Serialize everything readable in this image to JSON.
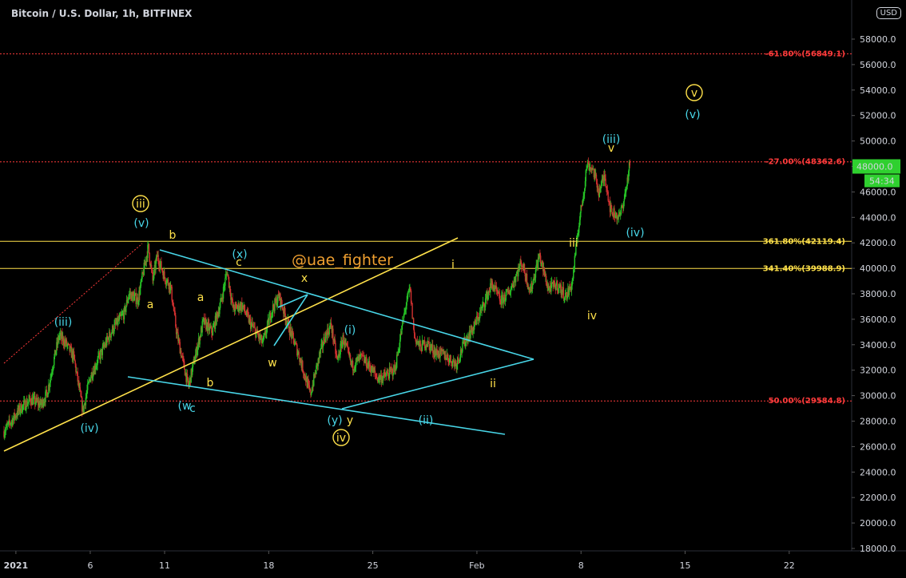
{
  "header": {
    "title": "Bitcoin / U.S. Dollar, 1h, BITFINEX",
    "currency": "USD"
  },
  "colors": {
    "background": "#000000",
    "axis_text": "#d1d4dc",
    "candle_up": "#26c526",
    "candle_down": "#d43030",
    "cyan": "#48d6e8",
    "yellow": "#ffe14a",
    "red": "#ff3b3b",
    "price_tag": "#2fd02f"
  },
  "chart_data": {
    "type": "candlestick",
    "symbol": "Bitcoin / U.S. Dollar",
    "interval": "1h",
    "exchange": "BITFINEX",
    "ylim": [
      17000,
      62000
    ],
    "y_ticks": [
      "18000.0",
      "20000.0",
      "22000.0",
      "24000.0",
      "26000.0",
      "28000.0",
      "30000.0",
      "32000.0",
      "34000.0",
      "36000.0",
      "38000.0",
      "40000.0",
      "42000.0",
      "44000.0",
      "46000.0",
      "48000.0",
      "50000.0",
      "52000.0",
      "54000.0",
      "56000.0",
      "58000.0"
    ],
    "x_ticks": [
      "2021",
      "6",
      "11",
      "18",
      "25",
      "Feb",
      "8",
      "15",
      "22"
    ],
    "x_tick_days": [
      32,
      37,
      42,
      49,
      56,
      63,
      70,
      77,
      84
    ],
    "xlim_days": [
      31.2,
      88.2
    ],
    "price_path_days": [
      31.2,
      32.3,
      33.0,
      33.7,
      34.1,
      34.5,
      34.9,
      35.3,
      35.9,
      36.5,
      37.0,
      38.0,
      38.5,
      39.3,
      39.6,
      40.2,
      40.9,
      41.2,
      41.5,
      42.0,
      42.4,
      42.8,
      43.6,
      44.0,
      44.6,
      45.2,
      45.8,
      46.2,
      46.6,
      47.2,
      47.8,
      48.6,
      49.2,
      49.7,
      50.4,
      51.0,
      51.8,
      52.4,
      52.8,
      53.2,
      53.6,
      54.0,
      54.6,
      55.2,
      55.8,
      56.3,
      56.8,
      57.5,
      58.2,
      58.5,
      58.8,
      59.2,
      59.6,
      60.2,
      60.8,
      61.6,
      62.2,
      62.8,
      63.4,
      64.0,
      64.6,
      65.2,
      66.0,
      66.6,
      67.2,
      67.8,
      68.4,
      69.0,
      69.4,
      69.8,
      70.2,
      70.4,
      70.8,
      71.2,
      71.6,
      72.0,
      72.6,
      73.0,
      73.3
    ],
    "price_path_values": [
      27200,
      29000,
      29700,
      29300,
      30200,
      32500,
      34700,
      34200,
      33000,
      28800,
      31500,
      34000,
      35200,
      36500,
      38000,
      37500,
      41700,
      39000,
      41000,
      39300,
      38600,
      35000,
      30700,
      32800,
      35800,
      35000,
      37400,
      39800,
      36800,
      37100,
      35600,
      34100,
      36700,
      37800,
      35200,
      33300,
      30100,
      33100,
      34700,
      35500,
      32700,
      34500,
      32300,
      33000,
      32300,
      31400,
      31500,
      32100,
      37000,
      38400,
      34600,
      33800,
      34200,
      33400,
      33200,
      32500,
      34300,
      35400,
      37000,
      38800,
      37400,
      38200,
      40500,
      38200,
      41000,
      38400,
      38700,
      37800,
      38800,
      43000,
      46200,
      48200,
      47800,
      46000,
      47300,
      44500,
      44000,
      46000,
      48400
    ],
    "current_price": "48000.0",
    "bar_countdown": "54:34",
    "levels": [
      {
        "label": "-61.80%(56849.1)",
        "price": 56849.1,
        "color": "#ff3b3b",
        "style": "dotted"
      },
      {
        "label": "-27.00%(48362.6)",
        "price": 48362.6,
        "color": "#ff3b3b",
        "style": "dotted"
      },
      {
        "label": "361.80%(42119.4)",
        "price": 42119.4,
        "color": "#ffe14a",
        "style": "solid"
      },
      {
        "label": "341.40%(39988.9)",
        "price": 39988.9,
        "color": "#ffe14a",
        "style": "solid"
      },
      {
        "label": "50.00%(29584.8)",
        "price": 29584.8,
        "color": "#ff3b3b",
        "style": "dotted"
      }
    ],
    "annotations": {
      "cyan": [
        "(iii)",
        "(iv)",
        "(v)",
        "(w",
        "(x)",
        "(i)",
        "(y)",
        "(ii)",
        "(iii)",
        "(iv)",
        "(v)",
        "c"
      ],
      "yellow": [
        "b",
        "a",
        "a",
        "b",
        "c",
        "x",
        "w",
        "y",
        "i",
        "ii",
        "iii",
        "iv",
        "v"
      ],
      "circled": [
        "iii",
        "iv",
        "v"
      ]
    },
    "watermark": "@uae_fighter"
  }
}
